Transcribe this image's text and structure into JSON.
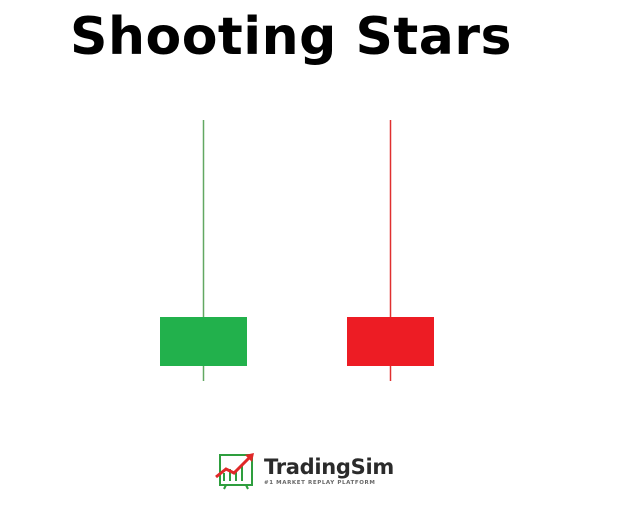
{
  "title": "Shooting Stars",
  "candles": [
    {
      "name": "bullish",
      "color": "#22b14c",
      "wick_color": "#62a862"
    },
    {
      "name": "bearish",
      "color": "#ed1c24",
      "wick_color": "#e03030"
    }
  ],
  "logo": {
    "name": "TradingSim",
    "tagline": "#1 MARKET REPLAY PLATFORM",
    "icon": "trending-up-chart-icon"
  }
}
